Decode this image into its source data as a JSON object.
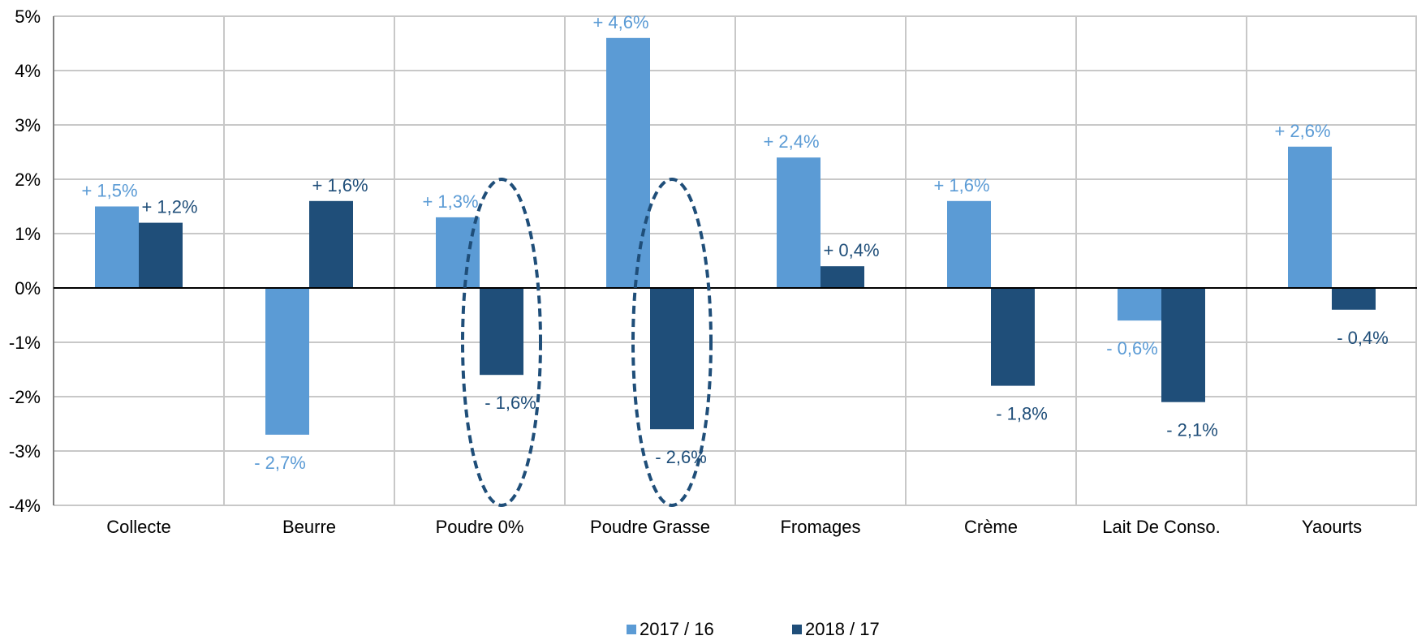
{
  "chart_data": {
    "type": "bar",
    "categories": [
      "Collecte",
      "Beurre",
      "Poudre 0%",
      "Poudre Grasse",
      "Fromages",
      "Crème",
      "Lait De Conso.",
      "Yaourts"
    ],
    "series": [
      {
        "name": "2017 / 16",
        "color": "#5b9bd5",
        "values": [
          1.5,
          -2.7,
          1.3,
          4.6,
          2.4,
          1.6,
          -0.6,
          2.6
        ],
        "labels": [
          "+ 1,5%",
          "- 2,7%",
          "+ 1,3%",
          "+ 4,6%",
          "+ 2,4%",
          "+ 1,6%",
          "- 0,6%",
          "+ 2,6%"
        ]
      },
      {
        "name": "2018 / 17",
        "color": "#1f4e79",
        "values": [
          1.2,
          1.6,
          -1.6,
          -2.6,
          0.4,
          -1.8,
          -2.1,
          -0.4
        ],
        "labels": [
          "+ 1,2%",
          "+ 1,6%",
          "- 1,6%",
          "- 2,6%",
          "+ 0,4%",
          "- 1,8%",
          "- 2,1%",
          "- 0,4%"
        ]
      }
    ],
    "ylim": [
      -4,
      5
    ],
    "yticks": [
      "5%",
      "4%",
      "3%",
      "2%",
      "1%",
      "0%",
      "-1%",
      "-2%",
      "-3%",
      "-4%"
    ],
    "grid": true,
    "legend_position": "bottom",
    "annotations": [
      {
        "shape": "dashed-ellipse",
        "category": "Poudre 0%",
        "series": "2018 / 17",
        "color": "#1f4e79"
      },
      {
        "shape": "dashed-ellipse",
        "category": "Poudre Grasse",
        "series": "2018 / 17",
        "color": "#1f4e79"
      }
    ]
  }
}
